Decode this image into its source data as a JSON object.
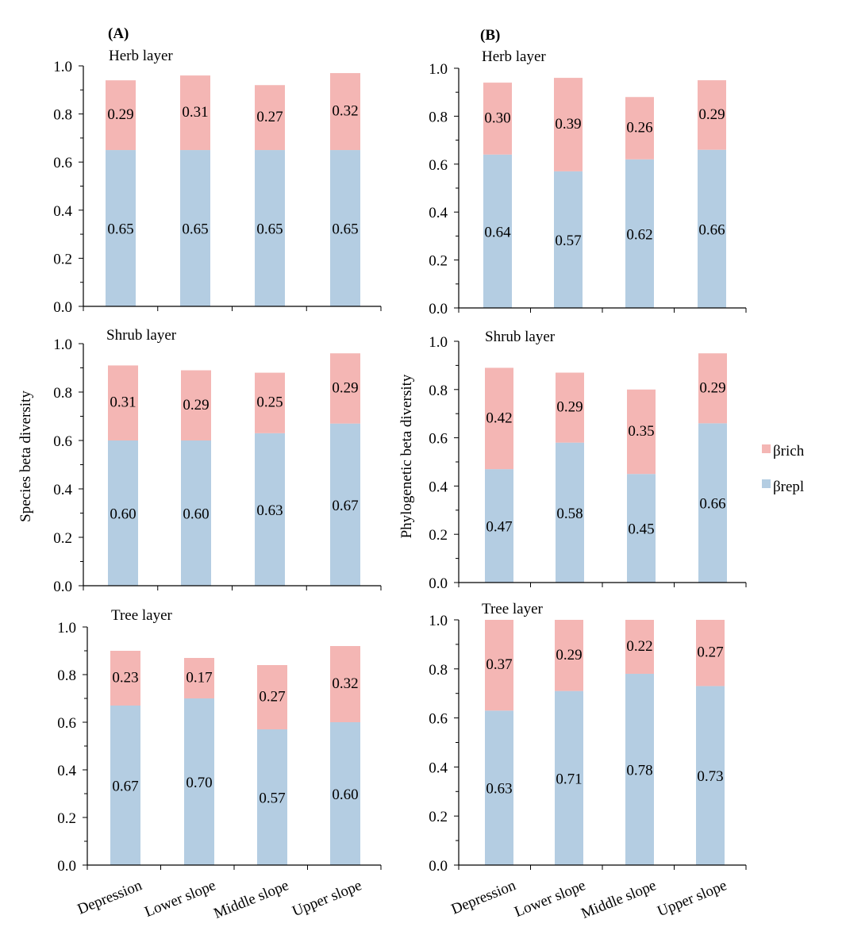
{
  "panels": {
    "left": "(A)",
    "right": "(B)"
  },
  "ylabels": {
    "left": "Species beta diversity",
    "right": "Phylogenetic beta diversity"
  },
  "legend": [
    {
      "label": "βrich",
      "color": "#f4b6b4"
    },
    {
      "label": "βrepl",
      "color": "#b4cde2"
    }
  ],
  "chart_data": [
    {
      "type": "bar",
      "stacked": true,
      "title": "Herb layer",
      "panel": "A",
      "categories": [
        "Depression",
        "Lower slope",
        "Middle slope",
        "Upper slope"
      ],
      "ylim": [
        0,
        1.0
      ],
      "yticks": [
        "0.0",
        "0.2",
        "0.4",
        "0.6",
        "0.8",
        "1.0"
      ],
      "series": [
        {
          "name": "βrepl",
          "values": [
            0.65,
            0.65,
            0.65,
            0.65
          ]
        },
        {
          "name": "βrich",
          "values": [
            0.29,
            0.31,
            0.27,
            0.32
          ]
        }
      ]
    },
    {
      "type": "bar",
      "stacked": true,
      "title": "Shrub layer",
      "panel": "A",
      "categories": [
        "Depression",
        "Lower slope",
        "Middle slope",
        "Upper slope"
      ],
      "ylim": [
        0,
        1.0
      ],
      "yticks": [
        "0.0",
        "0.2",
        "0.4",
        "0.6",
        "0.8",
        "1.0"
      ],
      "series": [
        {
          "name": "βrepl",
          "values": [
            0.6,
            0.6,
            0.63,
            0.67
          ]
        },
        {
          "name": "βrich",
          "values": [
            0.31,
            0.29,
            0.25,
            0.29
          ]
        }
      ]
    },
    {
      "type": "bar",
      "stacked": true,
      "title": "Tree layer",
      "panel": "A",
      "categories": [
        "Depression",
        "Lower slope",
        "Middle slope",
        "Upper slope"
      ],
      "ylim": [
        0,
        1.0
      ],
      "yticks": [
        "0.0",
        "0.2",
        "0.4",
        "0.6",
        "0.8",
        "1.0"
      ],
      "series": [
        {
          "name": "βrepl",
          "values": [
            0.67,
            0.7,
            0.57,
            0.6
          ]
        },
        {
          "name": "βrich",
          "values": [
            0.23,
            0.17,
            0.27,
            0.32
          ]
        }
      ]
    },
    {
      "type": "bar",
      "stacked": true,
      "title": "Herb layer",
      "panel": "B",
      "categories": [
        "Depression",
        "Lower slope",
        "Middle slope",
        "Upper slope"
      ],
      "ylim": [
        0,
        1.0
      ],
      "yticks": [
        "0.0",
        "0.2",
        "0.4",
        "0.6",
        "0.8",
        "1.0"
      ],
      "series": [
        {
          "name": "βrepl",
          "values": [
            0.64,
            0.57,
            0.62,
            0.66
          ]
        },
        {
          "name": "βrich",
          "values": [
            0.3,
            0.39,
            0.26,
            0.29
          ]
        }
      ]
    },
    {
      "type": "bar",
      "stacked": true,
      "title": "Shrub layer",
      "panel": "B",
      "categories": [
        "Depression",
        "Lower slope",
        "Middle slope",
        "Upper slope"
      ],
      "ylim": [
        0,
        1.0
      ],
      "yticks": [
        "0.0",
        "0.2",
        "0.4",
        "0.6",
        "0.8",
        "1.0"
      ],
      "series": [
        {
          "name": "βrepl",
          "values": [
            0.47,
            0.58,
            0.45,
            0.66
          ]
        },
        {
          "name": "βrich",
          "values": [
            0.42,
            0.29,
            0.35,
            0.29
          ]
        }
      ]
    },
    {
      "type": "bar",
      "stacked": true,
      "title": "Tree layer",
      "panel": "B",
      "categories": [
        "Depression",
        "Lower slope",
        "Middle slope",
        "Upper slope"
      ],
      "ylim": [
        0,
        1.0
      ],
      "yticks": [
        "0.0",
        "0.2",
        "0.4",
        "0.6",
        "0.8",
        "1.0"
      ],
      "series": [
        {
          "name": "βrepl",
          "values": [
            0.63,
            0.71,
            0.78,
            0.73
          ]
        },
        {
          "name": "βrich",
          "values": [
            0.37,
            0.29,
            0.22,
            0.27
          ]
        }
      ]
    }
  ]
}
